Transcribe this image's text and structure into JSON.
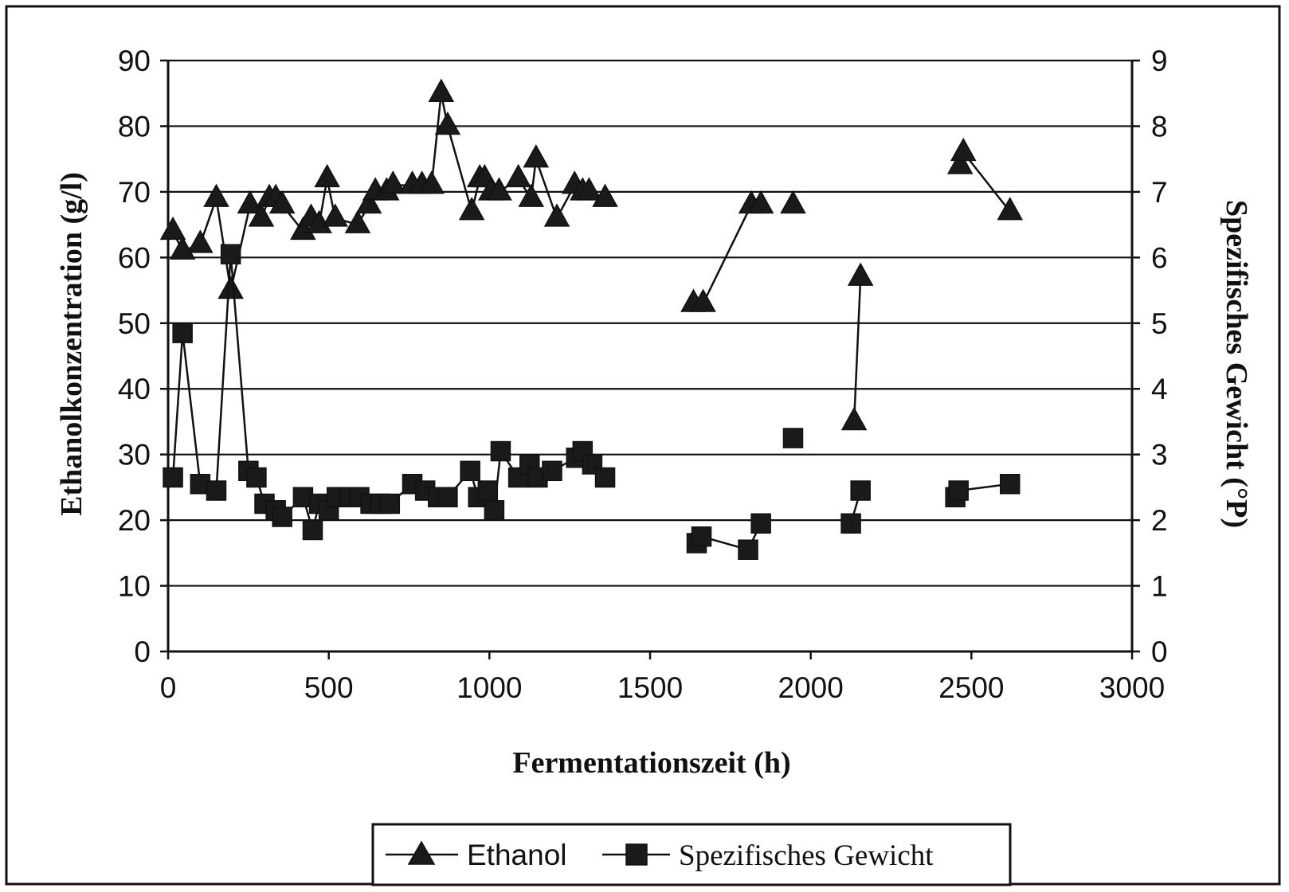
{
  "chart_data": {
    "type": "line",
    "xlabel": "Fermentationszeit (h)",
    "ylabel_left": "Ethanolkonzentration (g/l)",
    "ylabel_right": "Spezifisches Gewicht (°P)",
    "xlim": [
      0,
      3000
    ],
    "ylim_left": [
      0,
      90
    ],
    "ylim_right": [
      0,
      9
    ],
    "x_ticks": [
      "0",
      "500",
      "1000",
      "1500",
      "2000",
      "2500",
      "3000"
    ],
    "y_left_ticks": [
      "0",
      "10",
      "20",
      "30",
      "40",
      "50",
      "60",
      "70",
      "80",
      "90"
    ],
    "y_right_ticks": [
      "0",
      "1",
      "2",
      "3",
      "4",
      "5",
      "6",
      "7",
      "8",
      "9"
    ],
    "grid": true,
    "legend_position": "bottom",
    "series": [
      {
        "name": "Ethanol",
        "axis": "left",
        "marker": "triangle",
        "segments": [
          [
            [
              15,
              64
            ],
            [
              45,
              61
            ],
            [
              100,
              62
            ],
            [
              150,
              69
            ],
            [
              195,
              55
            ],
            [
              255,
              68
            ],
            [
              290,
              66
            ],
            [
              315,
              69
            ],
            [
              335,
              69
            ],
            [
              355,
              68
            ],
            [
              420,
              64
            ],
            [
              445,
              66
            ],
            [
              470,
              65
            ],
            [
              495,
              72
            ],
            [
              520,
              66
            ],
            [
              590,
              65
            ],
            [
              625,
              68
            ],
            [
              645,
              70
            ],
            [
              680,
              70
            ],
            [
              700,
              71
            ],
            [
              760,
              71
            ],
            [
              790,
              71
            ],
            [
              820,
              71
            ],
            [
              850,
              85
            ],
            [
              870,
              80
            ],
            [
              945,
              67
            ],
            [
              970,
              72
            ],
            [
              985,
              72
            ],
            [
              1005,
              70
            ],
            [
              1030,
              70
            ],
            [
              1090,
              72
            ],
            [
              1130,
              69
            ],
            [
              1145,
              75
            ],
            [
              1210,
              66
            ],
            [
              1265,
              71
            ],
            [
              1290,
              70
            ],
            [
              1310,
              70
            ],
            [
              1360,
              69
            ]
          ],
          [
            [
              1635,
              53
            ],
            [
              1665,
              53
            ],
            [
              1815,
              68
            ],
            [
              1845,
              68
            ]
          ],
          [
            [
              1945,
              68
            ]
          ],
          [
            [
              2135,
              35
            ],
            [
              2155,
              57
            ]
          ],
          [
            [
              2465,
              74
            ],
            [
              2475,
              76
            ],
            [
              2620,
              67
            ]
          ]
        ]
      },
      {
        "name": "Spezifisches Gewicht",
        "axis": "right",
        "marker": "square",
        "segments": [
          [
            [
              15,
              2.65
            ],
            [
              45,
              4.85
            ],
            [
              100,
              2.55
            ],
            [
              150,
              2.45
            ],
            [
              195,
              6.05
            ],
            [
              250,
              2.75
            ],
            [
              275,
              2.65
            ],
            [
              300,
              2.25
            ],
            [
              335,
              2.15
            ],
            [
              355,
              2.05
            ],
            [
              420,
              2.35
            ],
            [
              450,
              1.85
            ],
            [
              470,
              2.25
            ],
            [
              500,
              2.15
            ],
            [
              525,
              2.35
            ],
            [
              565,
              2.35
            ],
            [
              595,
              2.35
            ],
            [
              630,
              2.25
            ],
            [
              660,
              2.25
            ],
            [
              690,
              2.25
            ],
            [
              760,
              2.55
            ],
            [
              800,
              2.45
            ],
            [
              840,
              2.35
            ],
            [
              870,
              2.35
            ],
            [
              940,
              2.75
            ],
            [
              965,
              2.35
            ],
            [
              995,
              2.45
            ],
            [
              1015,
              2.15
            ],
            [
              1035,
              3.05
            ],
            [
              1090,
              2.65
            ],
            [
              1125,
              2.85
            ],
            [
              1150,
              2.65
            ],
            [
              1195,
              2.75
            ],
            [
              1270,
              2.95
            ],
            [
              1290,
              3.05
            ],
            [
              1320,
              2.85
            ],
            [
              1360,
              2.65
            ]
          ],
          [
            [
              1645,
              1.65
            ],
            [
              1660,
              1.75
            ],
            [
              1805,
              1.55
            ],
            [
              1845,
              1.95
            ]
          ],
          [
            [
              1945,
              3.25
            ]
          ],
          [
            [
              2125,
              1.95
            ],
            [
              2155,
              2.45
            ]
          ],
          [
            [
              2450,
              2.35
            ],
            [
              2460,
              2.45
            ],
            [
              2620,
              2.55
            ]
          ]
        ]
      }
    ]
  }
}
